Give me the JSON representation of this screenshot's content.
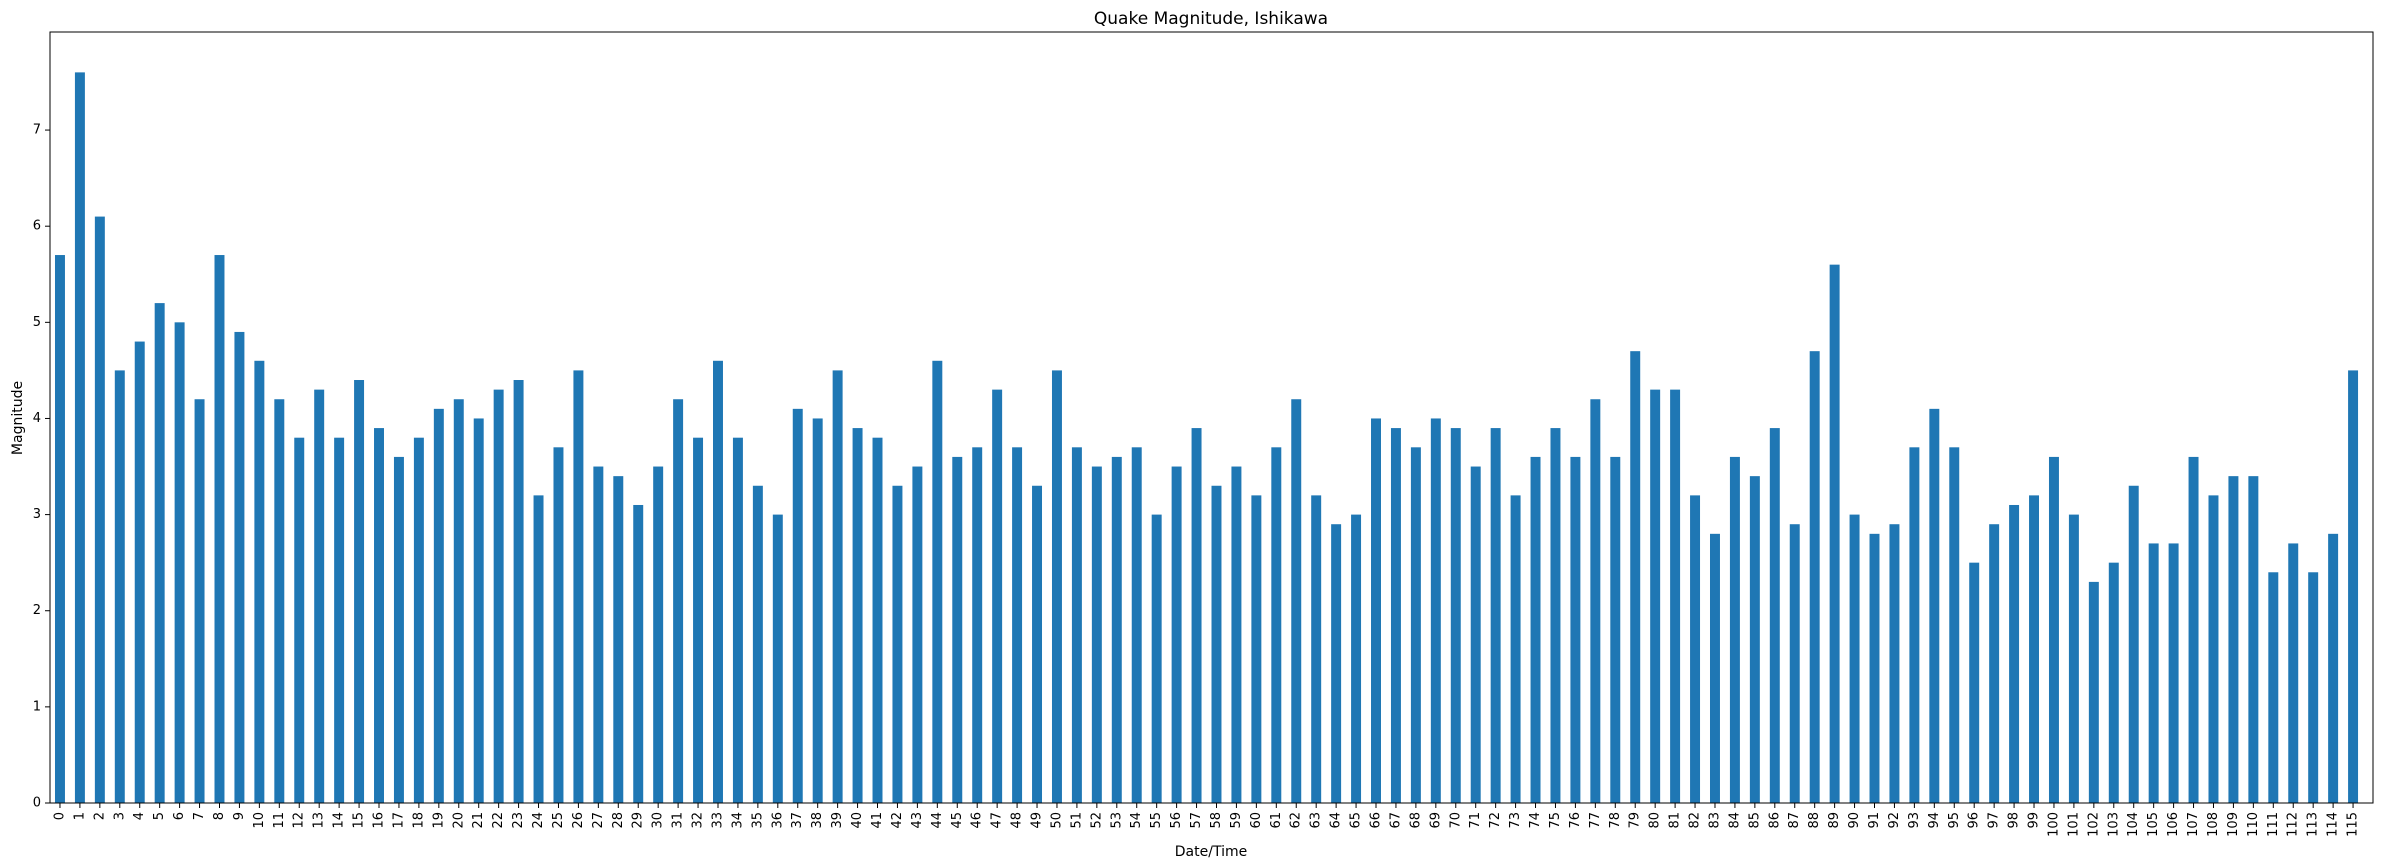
{
  "chart_data": {
    "type": "bar",
    "title": "Quake Magnitude, Ishikawa",
    "xlabel": "Date/Time",
    "ylabel": "Magnitude",
    "ylim": [
      0,
      8
    ],
    "yticks": [
      0,
      1,
      2,
      3,
      4,
      5,
      6,
      7
    ],
    "grid": false,
    "legend": "none",
    "bar_color": "#1f77b4",
    "categories": [
      "0",
      "1",
      "2",
      "3",
      "4",
      "5",
      "6",
      "7",
      "8",
      "9",
      "10",
      "11",
      "12",
      "13",
      "14",
      "15",
      "16",
      "17",
      "18",
      "19",
      "20",
      "21",
      "22",
      "23",
      "24",
      "25",
      "26",
      "27",
      "28",
      "29",
      "30",
      "31",
      "32",
      "33",
      "34",
      "35",
      "36",
      "37",
      "38",
      "39",
      "40",
      "41",
      "42",
      "43",
      "44",
      "45",
      "46",
      "47",
      "48",
      "49",
      "50",
      "51",
      "52",
      "53",
      "54",
      "55",
      "56",
      "57",
      "58",
      "59",
      "60",
      "61",
      "62",
      "63",
      "64",
      "65",
      "66",
      "67",
      "68",
      "69",
      "70",
      "71",
      "72",
      "73",
      "74",
      "75",
      "76",
      "77",
      "78",
      "79",
      "80",
      "81",
      "82",
      "83",
      "84",
      "85",
      "86",
      "87",
      "88",
      "89",
      "90",
      "91",
      "92",
      "93",
      "94",
      "95",
      "96",
      "97",
      "98",
      "99",
      "100",
      "101",
      "102",
      "103",
      "104",
      "105",
      "106",
      "107",
      "108",
      "109",
      "110",
      "111",
      "112",
      "113",
      "114",
      "115"
    ],
    "values": [
      5.7,
      7.6,
      6.1,
      4.5,
      4.8,
      5.2,
      5.0,
      4.2,
      5.7,
      4.9,
      4.6,
      4.2,
      3.8,
      4.3,
      3.8,
      4.4,
      3.9,
      3.6,
      3.8,
      4.1,
      4.2,
      4.0,
      4.3,
      4.4,
      3.2,
      3.7,
      4.5,
      3.5,
      3.4,
      3.1,
      3.5,
      4.2,
      3.8,
      4.6,
      3.8,
      3.3,
      3.0,
      4.1,
      4.0,
      4.5,
      3.9,
      3.8,
      3.3,
      3.5,
      4.6,
      3.6,
      3.7,
      4.3,
      3.7,
      3.3,
      4.5,
      3.7,
      3.5,
      3.6,
      3.7,
      3.0,
      3.5,
      3.9,
      3.3,
      3.5,
      3.2,
      3.7,
      4.2,
      3.2,
      2.9,
      3.0,
      4.0,
      3.9,
      3.7,
      4.0,
      3.9,
      3.5,
      3.9,
      3.2,
      3.6,
      3.9,
      3.6,
      4.2,
      3.6,
      4.7,
      4.3,
      4.3,
      3.2,
      2.8,
      3.6,
      3.4,
      3.9,
      2.9,
      4.7,
      5.6,
      3.0,
      2.8,
      2.9,
      3.7,
      4.1,
      3.7,
      2.5,
      2.9,
      3.1,
      3.2,
      3.6,
      3.0,
      2.3,
      2.5,
      3.3,
      2.7,
      2.7,
      3.6,
      3.2,
      3.4,
      3.4,
      2.4,
      2.7,
      2.4,
      2.8,
      4.5
    ]
  }
}
